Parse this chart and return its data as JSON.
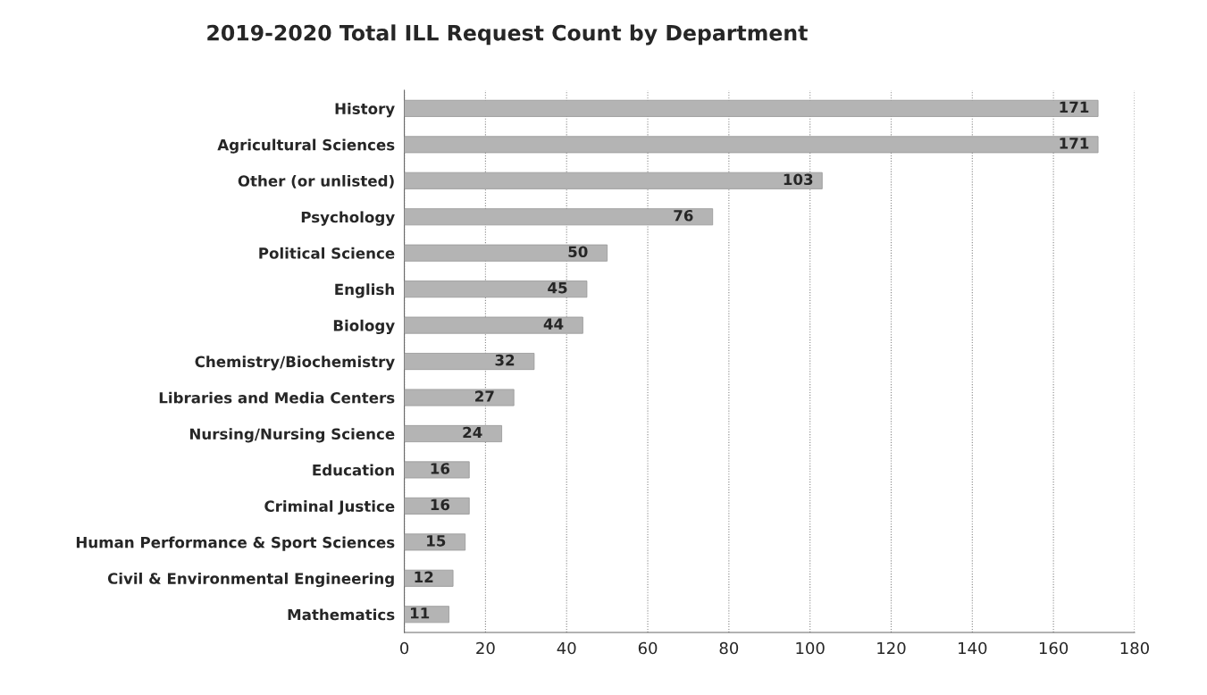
{
  "chart_data": {
    "type": "bar",
    "orientation": "horizontal",
    "title": "2019-2020 Total ILL Request Count by Department",
    "categories": [
      "History",
      "Agricultural Sciences",
      "Other (or unlisted)",
      "Psychology",
      "Political Science",
      "English",
      "Biology",
      "Chemistry/Biochemistry",
      "Libraries and Media Centers",
      "Nursing/Nursing Science",
      "Education",
      "Criminal Justice",
      "Human Performance & Sport Sciences",
      "Civil & Environmental Engineering",
      "Mathematics"
    ],
    "values": [
      171,
      171,
      103,
      76,
      50,
      45,
      44,
      32,
      27,
      24,
      16,
      16,
      15,
      12,
      11
    ],
    "color": "#b4b4b4",
    "xlim": [
      0,
      180
    ],
    "xticks": [
      0,
      20,
      40,
      60,
      80,
      100,
      120,
      140,
      160,
      180
    ],
    "grid": "x",
    "legend": false,
    "data_labels": true
  }
}
